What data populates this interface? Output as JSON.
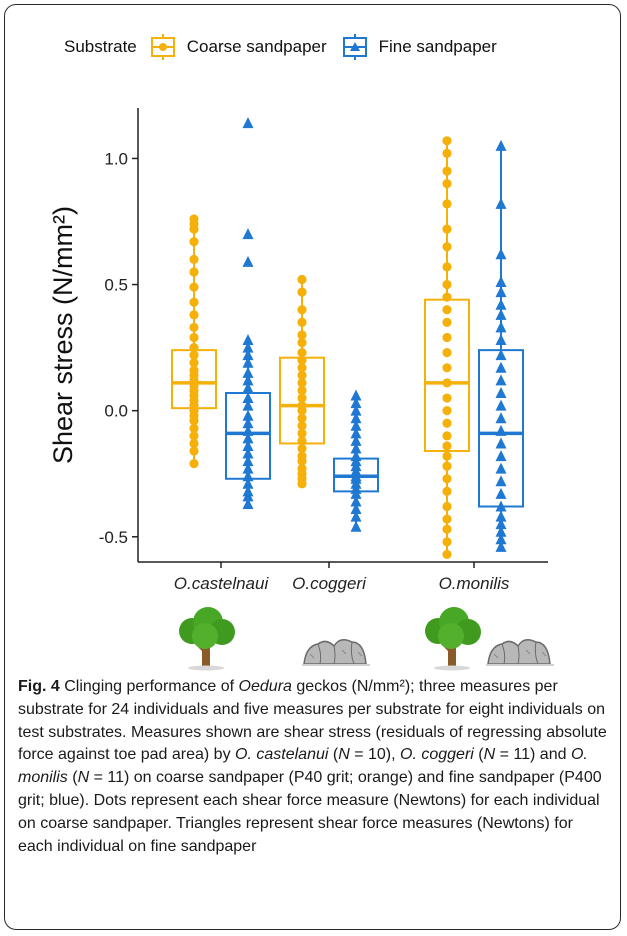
{
  "legend": {
    "title": "Substrate",
    "items": [
      {
        "label": "Coarse sandpaper",
        "color": "#F5B10A",
        "marker": "circle"
      },
      {
        "label": "Fine sandpaper",
        "color": "#1F78D1",
        "marker": "triangle"
      }
    ]
  },
  "icons": [
    "tree-icon",
    "rocks-icon",
    "tree-icon",
    "rocks-icon"
  ],
  "chart_data": {
    "type": "box",
    "ylabel": "Shear stress (N/mm²)",
    "ylim": [
      -0.6,
      1.2
    ],
    "yticks": [
      -0.5,
      0.0,
      0.5,
      1.0
    ],
    "ytick_labels": [
      "-0.5",
      "0.0",
      "0.5",
      "1.0"
    ],
    "categories": [
      "O.castelnaui",
      "O.coggeri",
      "O.monilis"
    ],
    "series": [
      {
        "name": "Coarse sandpaper",
        "color": "#F5B10A",
        "boxes": [
          {
            "category": "O.castelnaui",
            "q1": 0.01,
            "median": 0.11,
            "q3": 0.24,
            "whisker_low": -0.21,
            "whisker_high": 0.76,
            "points": [
              0.76,
              0.74,
              0.72,
              0.67,
              0.6,
              0.55,
              0.49,
              0.43,
              0.38,
              0.33,
              0.29,
              0.25,
              0.22,
              0.19,
              0.16,
              0.14,
              0.12,
              0.1,
              0.08,
              0.06,
              0.04,
              0.02,
              0.0,
              -0.02,
              -0.04,
              -0.07,
              -0.1,
              -0.13,
              -0.16,
              -0.21
            ]
          },
          {
            "category": "O.coggeri",
            "q1": -0.13,
            "median": 0.02,
            "q3": 0.21,
            "whisker_low": -0.29,
            "whisker_high": 0.52,
            "points": [
              0.52,
              0.47,
              0.4,
              0.35,
              0.3,
              0.27,
              0.23,
              0.2,
              0.17,
              0.14,
              0.11,
              0.08,
              0.05,
              0.02,
              0.0,
              -0.03,
              -0.06,
              -0.09,
              -0.12,
              -0.15,
              -0.18,
              -0.2,
              -0.23,
              -0.25,
              -0.27,
              -0.29
            ]
          },
          {
            "category": "O.monilis",
            "q1": -0.16,
            "median": 0.11,
            "q3": 0.44,
            "whisker_low": -0.57,
            "whisker_high": 1.07,
            "points": [
              1.07,
              1.02,
              0.95,
              0.9,
              0.82,
              0.72,
              0.65,
              0.57,
              0.5,
              0.45,
              0.4,
              0.35,
              0.29,
              0.23,
              0.17,
              0.11,
              0.05,
              0.0,
              -0.05,
              -0.1,
              -0.14,
              -0.18,
              -0.22,
              -0.27,
              -0.32,
              -0.38,
              -0.43,
              -0.47,
              -0.52,
              -0.57
            ]
          }
        ]
      },
      {
        "name": "Fine sandpaper",
        "color": "#1F78D1",
        "boxes": [
          {
            "category": "O.castelnaui",
            "q1": -0.27,
            "median": -0.09,
            "q3": 0.07,
            "whisker_low": -0.37,
            "whisker_high": 0.28,
            "points": [
              1.14,
              0.7,
              0.59,
              0.28,
              0.25,
              0.22,
              0.19,
              0.15,
              0.12,
              0.09,
              0.05,
              0.02,
              -0.02,
              -0.05,
              -0.08,
              -0.11,
              -0.14,
              -0.17,
              -0.2,
              -0.23,
              -0.26,
              -0.29,
              -0.32,
              -0.34,
              -0.37
            ]
          },
          {
            "category": "O.coggeri",
            "q1": -0.32,
            "median": -0.26,
            "q3": -0.19,
            "whisker_low": -0.46,
            "whisker_high": 0.06,
            "points": [
              0.06,
              0.03,
              0.0,
              -0.03,
              -0.06,
              -0.09,
              -0.12,
              -0.15,
              -0.18,
              -0.2,
              -0.22,
              -0.24,
              -0.26,
              -0.27,
              -0.29,
              -0.31,
              -0.33,
              -0.36,
              -0.39,
              -0.42,
              -0.46
            ]
          },
          {
            "category": "O.monilis",
            "q1": -0.38,
            "median": -0.09,
            "q3": 0.24,
            "whisker_low": -0.54,
            "whisker_high": 1.05,
            "points": [
              1.05,
              0.82,
              0.62,
              0.51,
              0.47,
              0.42,
              0.38,
              0.33,
              0.28,
              0.22,
              0.17,
              0.12,
              0.07,
              0.02,
              -0.03,
              -0.08,
              -0.13,
              -0.18,
              -0.23,
              -0.28,
              -0.33,
              -0.38,
              -0.42,
              -0.45,
              -0.48,
              -0.51,
              -0.54
            ]
          }
        ]
      }
    ]
  },
  "caption": {
    "fig_label": "Fig. 4",
    "parts": [
      {
        "t": " Clinging performance of ",
        "i": false
      },
      {
        "t": "Oedura",
        "i": true
      },
      {
        "t": " geckos (N/mm²); three measures per substrate for 24 individuals and five measures per substrate for eight individuals on test substrates. Measures shown are shear stress (residuals of regressing absolute force against toe pad area) by ",
        "i": false
      },
      {
        "t": "O. castelanui",
        "i": true
      },
      {
        "t": " (",
        "i": false
      },
      {
        "t": "N",
        "i": true
      },
      {
        "t": " = 10), ",
        "i": false
      },
      {
        "t": "O. coggeri",
        "i": true
      },
      {
        "t": " (",
        "i": false
      },
      {
        "t": "N",
        "i": true
      },
      {
        "t": " = 11) and ",
        "i": false
      },
      {
        "t": "O. monilis",
        "i": true
      },
      {
        "t": " (",
        "i": false
      },
      {
        "t": "N",
        "i": true
      },
      {
        "t": " = 11) on coarse sandpaper (P40 grit; orange) and fine sandpaper (P400 grit; blue). Dots represent each shear force measure (Newtons) for each individual on coarse sandpaper. Triangles represent shear force measures (Newtons) for each individual on fine sandpaper",
        "i": false
      }
    ]
  }
}
